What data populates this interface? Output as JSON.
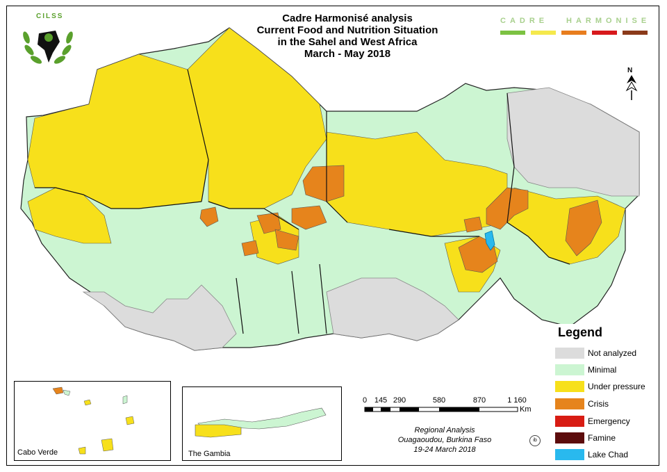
{
  "title": {
    "line1": "Cadre Harmonisé analysis",
    "line2": "Current Food and Nutrition Situation",
    "line3": "in the Sahel and West Africa",
    "line4": "March -  May 2018"
  },
  "banner": {
    "word1": "CADRE",
    "word2": "HARMONISE",
    "colors": [
      "#7cc242",
      "#f5e94c",
      "#e87d1e",
      "#d7191c",
      "#8b3a1a"
    ]
  },
  "logo": {
    "text": "CILSS",
    "icon": "cilss-africa-wreath-logo"
  },
  "legend": {
    "title": "Legend",
    "items": [
      {
        "label": "Not analyzed",
        "color": "#dcdcdc"
      },
      {
        "label": "Minimal",
        "color": "#ccf5d2"
      },
      {
        "label": "Under pressure",
        "color": "#f7e01b"
      },
      {
        "label": "Crisis",
        "color": "#e6841c"
      },
      {
        "label": "Emergency",
        "color": "#d81c13"
      },
      {
        "label": "Famine",
        "color": "#5c0c0c"
      },
      {
        "label": "Lake Chad",
        "color": "#29b9ee"
      }
    ]
  },
  "insets": {
    "cabo_verde": "Cabo Verde",
    "gambia": "The Gambia"
  },
  "scale": {
    "ticks": [
      "0",
      "145",
      "290",
      "580",
      "870",
      "1 160"
    ],
    "unit": "Km"
  },
  "credit": {
    "line1": "Regional Analysis",
    "line2": "Ouagaoudou, Burkina Faso",
    "line3": "19-24 March 2018"
  },
  "north_arrow": {
    "label": "N",
    "icon": "north-arrow-icon"
  },
  "signature": "ib",
  "map_colors": {
    "not_analyzed": "#dcdcdc",
    "minimal": "#ccf5d2",
    "under_pressure": "#f7e01b",
    "crisis": "#e6841c",
    "lake": "#29b9ee"
  }
}
